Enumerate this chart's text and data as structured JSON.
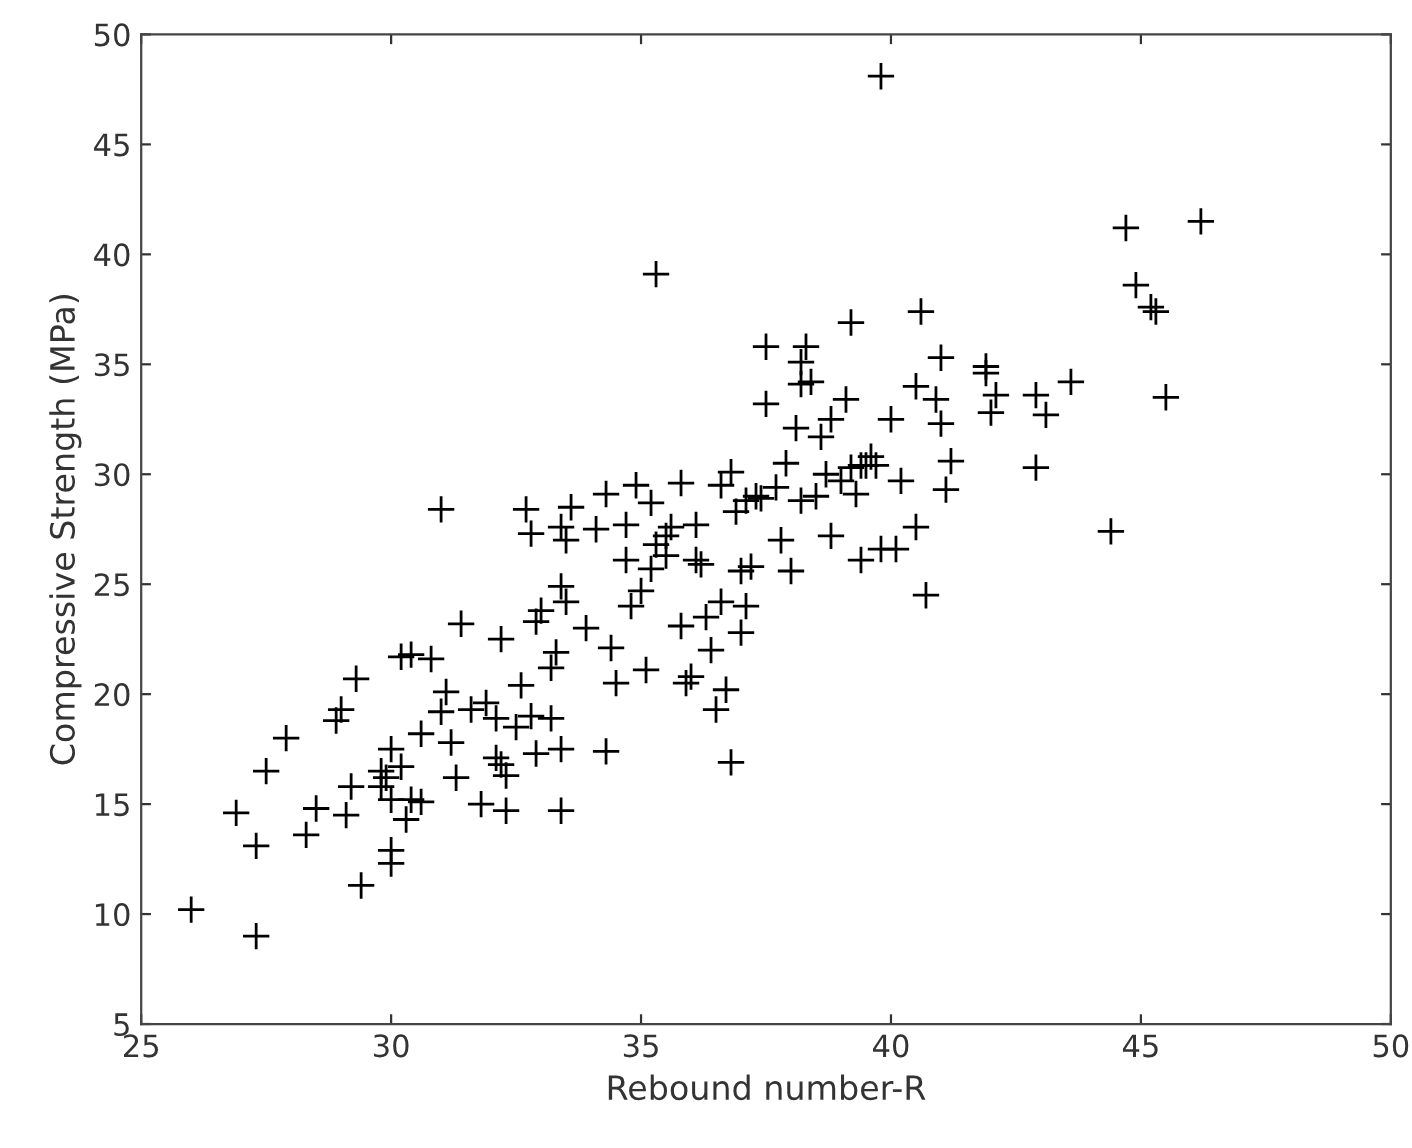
{
  "chart_data": {
    "type": "scatter",
    "xlabel": "Rebound number-R",
    "ylabel": "Compressive Strength (MPa)",
    "xlim": [
      25,
      50
    ],
    "ylim": [
      5,
      50
    ],
    "xticks": [
      25,
      30,
      35,
      40,
      45,
      50
    ],
    "yticks": [
      5,
      10,
      15,
      20,
      25,
      30,
      35,
      40,
      45,
      50
    ],
    "grid": false,
    "marker": "cross",
    "series": [
      {
        "color": "#000000",
        "x": [
          26.0,
          27.3,
          27.3,
          26.9,
          27.5,
          27.9,
          28.3,
          28.5,
          28.9,
          29.0,
          29.3,
          29.1,
          29.2,
          29.4,
          29.8,
          29.9,
          30.0,
          30.0,
          29.8,
          30.0,
          30.0,
          30.2,
          30.3,
          30.4,
          30.6,
          30.2,
          30.4,
          30.8,
          30.6,
          31.0,
          31.2,
          31.1,
          31.3,
          31.4,
          31.6,
          31.9,
          31.8,
          32.1,
          32.2,
          32.3,
          32.2,
          32.1,
          32.3,
          32.5,
          32.6,
          32.7,
          31.0,
          32.8,
          32.9,
          32.8,
          32.9,
          33.0,
          33.2,
          33.3,
          33.2,
          33.4,
          33.4,
          33.4,
          33.5,
          33.4,
          33.5,
          33.6,
          33.9,
          34.1,
          34.3,
          34.4,
          34.3,
          34.5,
          34.7,
          34.7,
          34.8,
          34.9,
          35.0,
          35.1,
          35.2,
          35.3,
          35.2,
          35.3,
          35.5,
          35.6,
          35.5,
          35.8,
          35.8,
          35.9,
          36.0,
          36.1,
          36.1,
          36.2,
          36.3,
          36.4,
          36.5,
          36.7,
          36.6,
          36.8,
          36.6,
          36.8,
          36.9,
          37.0,
          37.2,
          37.0,
          37.1,
          37.1,
          37.3,
          37.4,
          37.5,
          37.5,
          37.7,
          37.8,
          37.9,
          38.0,
          38.1,
          38.2,
          38.2,
          38.3,
          38.4,
          38.2,
          38.5,
          38.6,
          38.7,
          38.8,
          38.8,
          39.0,
          39.1,
          39.2,
          39.2,
          39.3,
          39.4,
          39.4,
          39.5,
          39.6,
          39.7,
          39.8,
          39.8,
          40.0,
          40.1,
          40.2,
          40.5,
          40.6,
          40.5,
          40.7,
          40.9,
          41.0,
          41.0,
          41.1,
          41.2,
          41.9,
          41.9,
          42.0,
          42.1,
          42.9,
          42.9,
          43.1,
          43.6,
          44.4,
          44.7,
          44.9,
          45.2,
          45.3,
          45.5,
          46.2
        ],
        "values": [
          10.2,
          9.0,
          13.1,
          14.6,
          16.5,
          18.0,
          13.6,
          14.8,
          18.8,
          19.3,
          20.7,
          14.5,
          15.8,
          11.3,
          16.5,
          16.2,
          12.3,
          12.9,
          15.8,
          15.2,
          17.5,
          16.7,
          14.3,
          15.2,
          15.1,
          21.7,
          21.8,
          21.6,
          18.2,
          19.2,
          17.8,
          20.1,
          16.2,
          23.2,
          19.3,
          19.6,
          15.0,
          17.1,
          16.8,
          16.3,
          22.5,
          18.9,
          14.7,
          18.5,
          20.4,
          28.4,
          28.4,
          27.3,
          23.3,
          19.0,
          17.3,
          23.8,
          21.2,
          21.9,
          18.9,
          14.7,
          17.5,
          24.9,
          24.2,
          27.6,
          27.0,
          28.5,
          23.0,
          27.5,
          29.1,
          22.1,
          17.4,
          20.5,
          26.1,
          27.7,
          24.0,
          29.5,
          24.7,
          21.1,
          28.7,
          26.8,
          25.7,
          39.1,
          27.2,
          27.6,
          26.3,
          29.6,
          23.1,
          20.5,
          20.8,
          27.7,
          26.1,
          25.9,
          23.5,
          22.0,
          19.3,
          20.2,
          24.2,
          16.9,
          29.5,
          30.1,
          28.3,
          25.6,
          25.8,
          22.8,
          24.0,
          28.8,
          29.0,
          28.9,
          33.2,
          35.8,
          29.4,
          27.0,
          30.5,
          25.6,
          32.1,
          34.1,
          35.1,
          35.8,
          34.2,
          28.8,
          29.0,
          31.7,
          30.0,
          27.2,
          32.5,
          29.7,
          33.4,
          36.9,
          30.3,
          29.1,
          26.1,
          30.4,
          30.4,
          30.8,
          30.4,
          48.1,
          26.6,
          32.5,
          26.6,
          29.7,
          34.0,
          37.4,
          27.6,
          24.5,
          33.4,
          32.3,
          35.3,
          29.3,
          30.6,
          34.9,
          34.6,
          32.8,
          33.6,
          33.6,
          30.3,
          32.7,
          34.2,
          27.4,
          41.2,
          38.6,
          37.6,
          37.4,
          33.5,
          41.5
        ]
      }
    ]
  }
}
